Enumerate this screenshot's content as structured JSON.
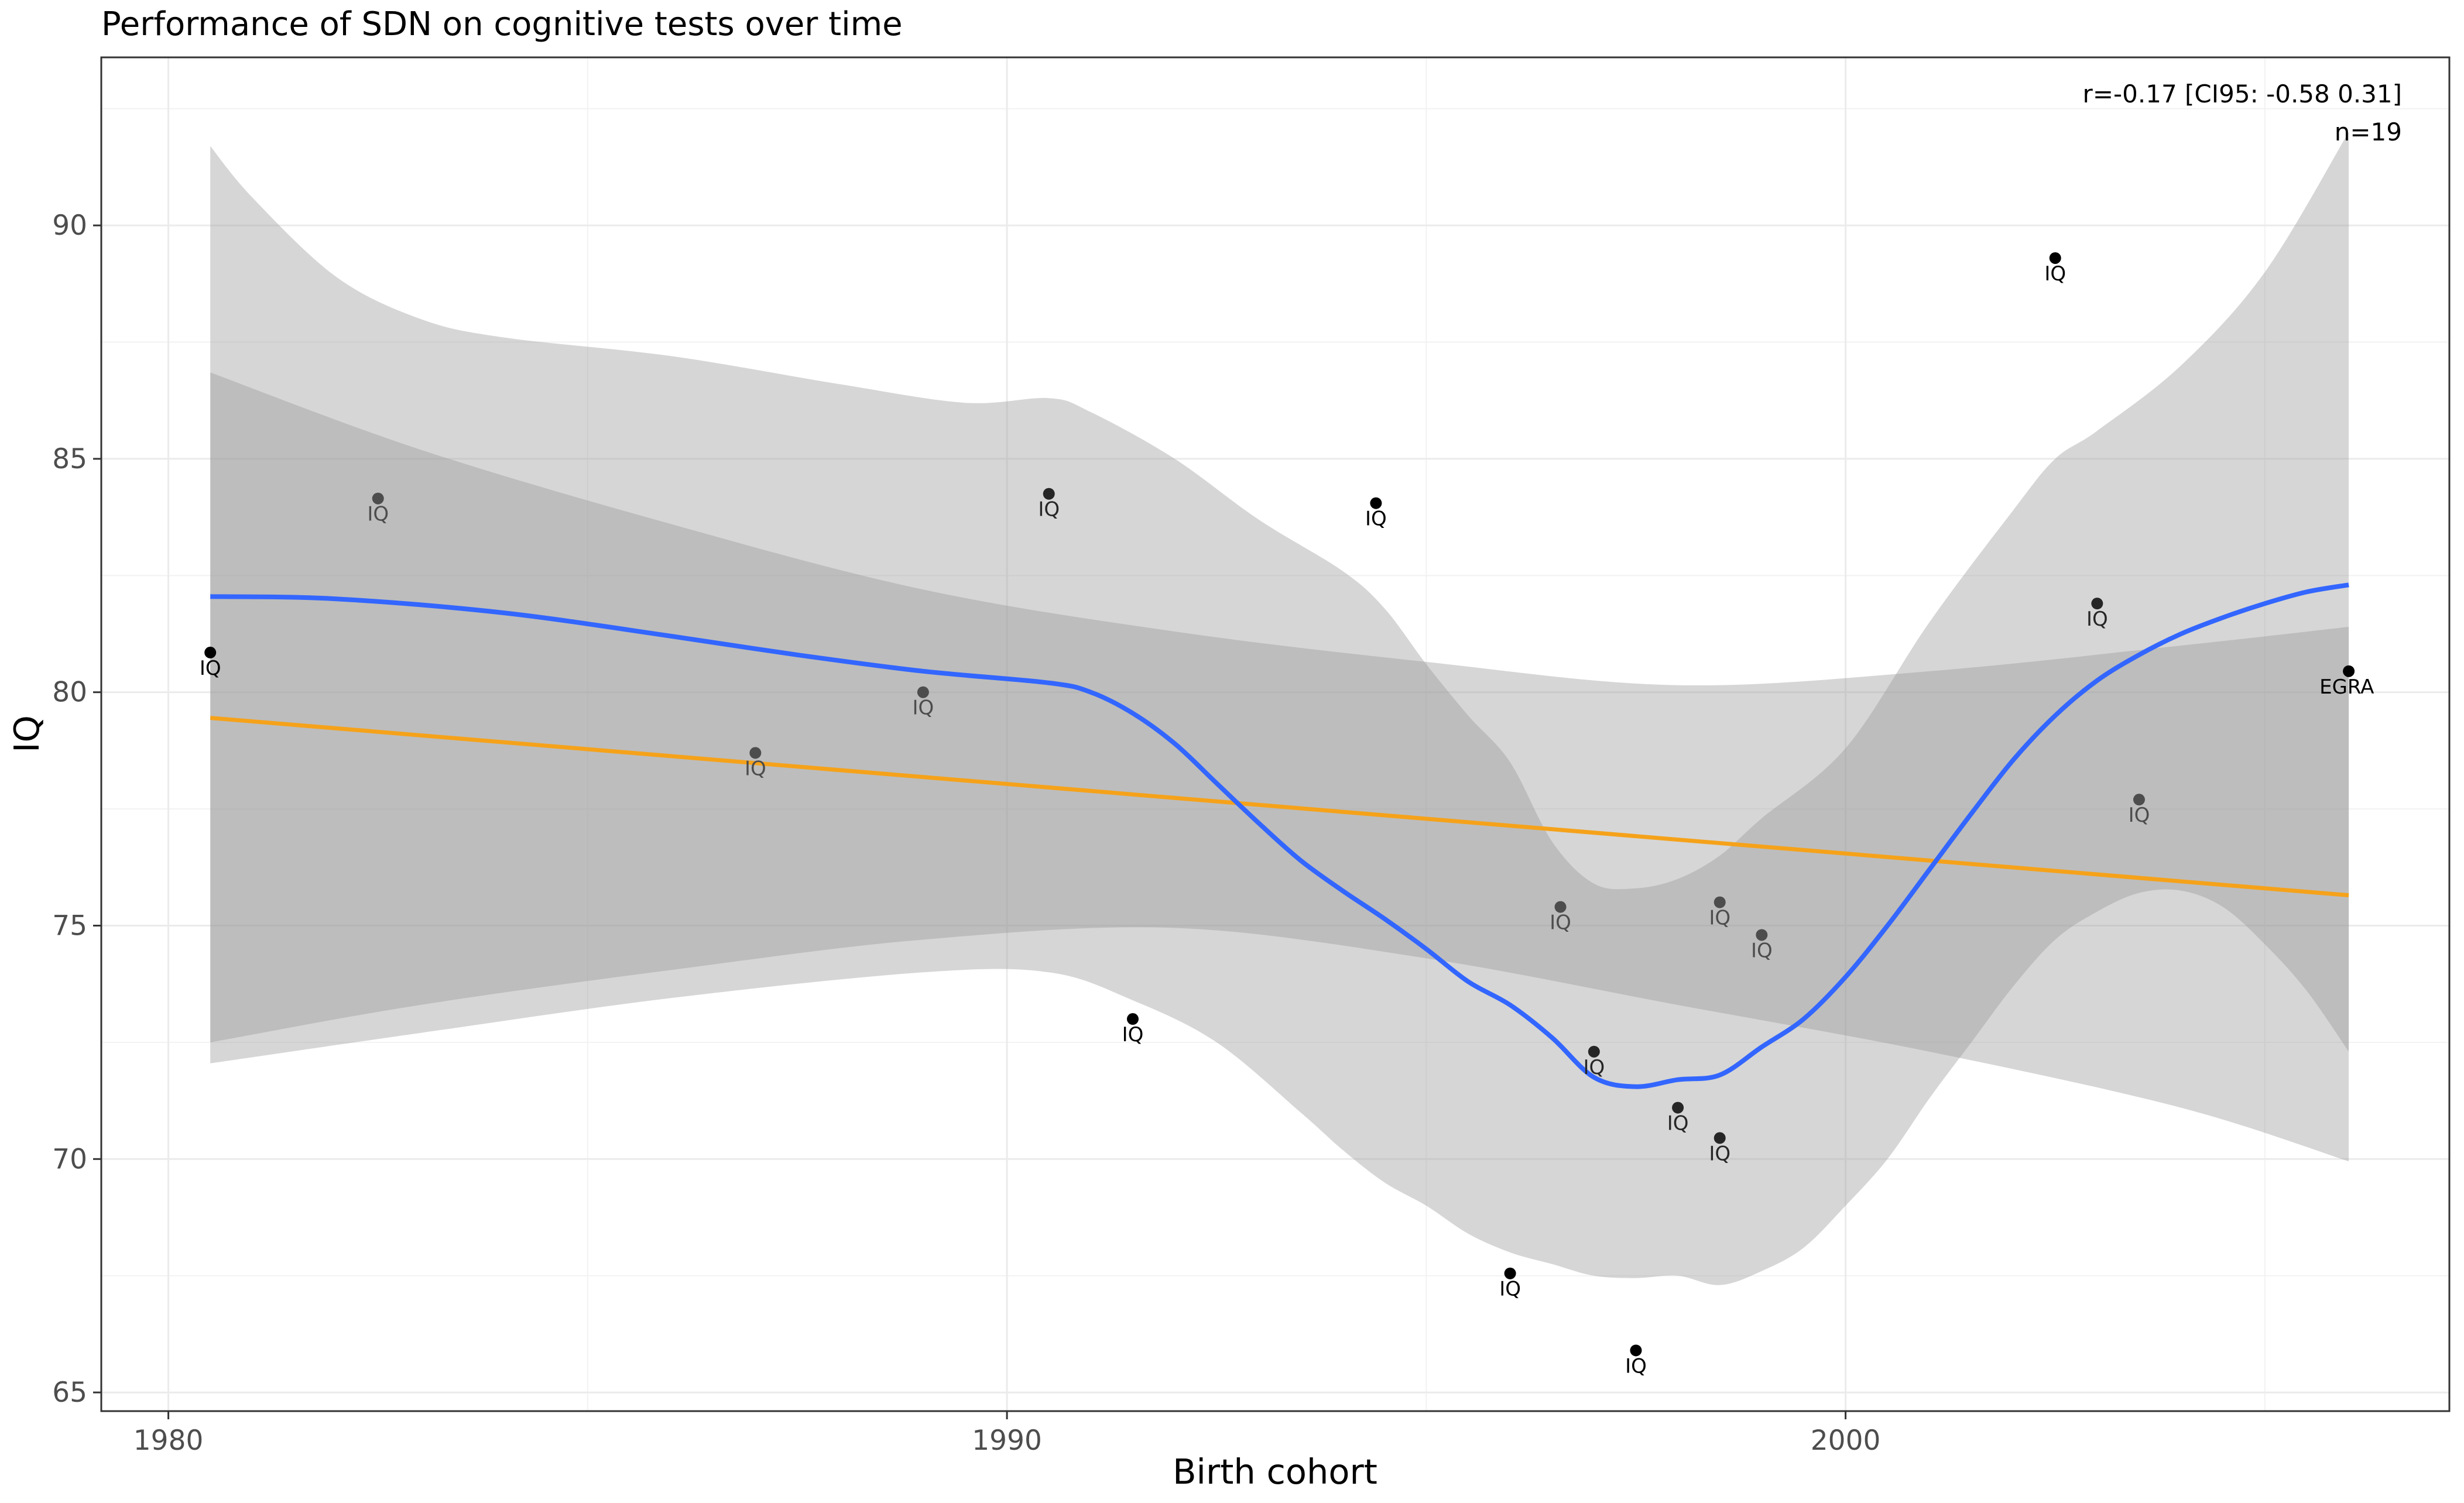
{
  "chart_data": {
    "type": "scatter",
    "title": "Performance of SDN on cognitive tests over time",
    "xlabel": "Birth cohort",
    "ylabel": "IQ",
    "xlim": [
      1979.2,
      2007.2
    ],
    "ylim": [
      64.6,
      93.6
    ],
    "x_ticks": [
      1980,
      1990,
      2000
    ],
    "y_ticks": [
      65,
      70,
      75,
      80,
      85,
      90
    ],
    "grid": true,
    "annotation": {
      "line1": "r=-0.17 [CI95: -0.58 0.31]",
      "line2": "n=19"
    },
    "points": [
      {
        "x": 1980.5,
        "y": 80.85,
        "label": "IQ",
        "shade": 0.0
      },
      {
        "x": 1982.5,
        "y": 84.15,
        "label": "IQ",
        "shade": 0.3
      },
      {
        "x": 1987.0,
        "y": 78.7,
        "label": "IQ",
        "shade": 0.3
      },
      {
        "x": 1989.0,
        "y": 80.0,
        "label": "IQ",
        "shade": 0.3
      },
      {
        "x": 1990.5,
        "y": 84.25,
        "label": "IQ",
        "shade": 0.15
      },
      {
        "x": 1991.5,
        "y": 73.0,
        "label": "IQ",
        "shade": 0.0
      },
      {
        "x": 1994.4,
        "y": 84.05,
        "label": "IQ",
        "shade": 0.0
      },
      {
        "x": 1996.0,
        "y": 67.55,
        "label": "IQ",
        "shade": 0.0
      },
      {
        "x": 1996.6,
        "y": 75.4,
        "label": "IQ",
        "shade": 0.3
      },
      {
        "x": 1997.0,
        "y": 72.3,
        "label": "IQ",
        "shade": 0.15
      },
      {
        "x": 1997.5,
        "y": 65.9,
        "label": "IQ",
        "shade": 0.0
      },
      {
        "x": 1998.0,
        "y": 71.1,
        "label": "IQ",
        "shade": 0.15
      },
      {
        "x": 1998.5,
        "y": 75.5,
        "label": "IQ",
        "shade": 0.3
      },
      {
        "x": 1998.5,
        "y": 70.45,
        "label": "IQ",
        "shade": 0.15
      },
      {
        "x": 1999.0,
        "y": 74.8,
        "label": "IQ",
        "shade": 0.3
      },
      {
        "x": 2002.5,
        "y": 89.3,
        "label": "IQ",
        "shade": 0.0
      },
      {
        "x": 2003.0,
        "y": 81.9,
        "label": "IQ",
        "shade": 0.15
      },
      {
        "x": 2003.5,
        "y": 77.7,
        "label": "IQ",
        "shade": 0.3
      },
      {
        "x": 2006.0,
        "y": 80.45,
        "label": "EGRA",
        "shade": 0.0
      }
    ],
    "linear_fit": {
      "color": "#f5a21a",
      "x": [
        1980.5,
        2006.0
      ],
      "y": [
        79.45,
        75.65
      ],
      "ci_lower": [
        [
          1980.5,
          72.5
        ],
        [
          1983.0,
          73.3
        ],
        [
          1986.0,
          74.05
        ],
        [
          1989.0,
          74.7
        ],
        [
          1992.0,
          74.95
        ],
        [
          1995.0,
          74.3
        ],
        [
          1998.0,
          73.3
        ],
        [
          2001.0,
          72.3
        ],
        [
          2004.0,
          71.1
        ],
        [
          2006.0,
          69.95
        ]
      ],
      "ci_upper": [
        [
          1980.5,
          86.85
        ],
        [
          1983.0,
          85.2
        ],
        [
          1986.0,
          83.6
        ],
        [
          1989.0,
          82.2
        ],
        [
          1992.0,
          81.3
        ],
        [
          1995.0,
          80.65
        ],
        [
          1998.0,
          80.15
        ],
        [
          2001.0,
          80.45
        ],
        [
          2004.0,
          81.0
        ],
        [
          2006.0,
          81.4
        ]
      ]
    },
    "smooth_fit": {
      "color": "#3366ff",
      "points": [
        [
          1980.5,
          82.05
        ],
        [
          1982.0,
          82.0
        ],
        [
          1984.0,
          81.7
        ],
        [
          1986.0,
          81.2
        ],
        [
          1987.5,
          80.8
        ],
        [
          1989.0,
          80.45
        ],
        [
          1990.5,
          80.2
        ],
        [
          1991.0,
          80.0
        ],
        [
          1991.5,
          79.55
        ],
        [
          1992.0,
          78.9
        ],
        [
          1992.5,
          78.05
        ],
        [
          1993.0,
          77.2
        ],
        [
          1993.5,
          76.4
        ],
        [
          1994.0,
          75.75
        ],
        [
          1994.5,
          75.15
        ],
        [
          1995.0,
          74.5
        ],
        [
          1995.5,
          73.8
        ],
        [
          1996.0,
          73.3
        ],
        [
          1996.5,
          72.6
        ],
        [
          1997.0,
          71.75
        ],
        [
          1997.5,
          71.55
        ],
        [
          1998.0,
          71.7
        ],
        [
          1998.5,
          71.8
        ],
        [
          1999.0,
          72.4
        ],
        [
          1999.5,
          73.0
        ],
        [
          2000.0,
          73.9
        ],
        [
          2000.5,
          75.0
        ],
        [
          2001.0,
          76.2
        ],
        [
          2001.5,
          77.4
        ],
        [
          2002.0,
          78.55
        ],
        [
          2002.5,
          79.5
        ],
        [
          2003.0,
          80.25
        ],
        [
          2003.5,
          80.8
        ],
        [
          2004.0,
          81.25
        ],
        [
          2004.5,
          81.6
        ],
        [
          2005.0,
          81.9
        ],
        [
          2005.5,
          82.15
        ],
        [
          2006.0,
          82.3
        ]
      ],
      "ci_lower": [
        [
          1980.5,
          72.05
        ],
        [
          1983.0,
          72.7
        ],
        [
          1986.0,
          73.45
        ],
        [
          1989.0,
          74.0
        ],
        [
          1990.5,
          74.0
        ],
        [
          1991.5,
          73.4
        ],
        [
          1992.5,
          72.5
        ],
        [
          1993.5,
          71.0
        ],
        [
          1994.0,
          70.2
        ],
        [
          1994.5,
          69.5
        ],
        [
          1995.0,
          69.0
        ],
        [
          1995.5,
          68.4
        ],
        [
          1996.0,
          68.0
        ],
        [
          1996.5,
          67.75
        ],
        [
          1997.0,
          67.5
        ],
        [
          1997.5,
          67.45
        ],
        [
          1998.0,
          67.5
        ],
        [
          1998.5,
          67.3
        ],
        [
          1999.0,
          67.6
        ],
        [
          1999.5,
          68.1
        ],
        [
          2000.0,
          69.0
        ],
        [
          2000.5,
          70.0
        ],
        [
          2001.0,
          71.3
        ],
        [
          2001.5,
          72.5
        ],
        [
          2002.0,
          73.7
        ],
        [
          2002.5,
          74.7
        ],
        [
          2003.0,
          75.3
        ],
        [
          2003.5,
          75.7
        ],
        [
          2004.0,
          75.75
        ],
        [
          2004.5,
          75.4
        ],
        [
          2005.0,
          74.6
        ],
        [
          2005.5,
          73.6
        ],
        [
          2006.0,
          72.3
        ]
      ],
      "ci_upper": [
        [
          1980.5,
          91.7
        ],
        [
          1981.0,
          90.6
        ],
        [
          1982.0,
          88.9
        ],
        [
          1983.0,
          88.0
        ],
        [
          1984.0,
          87.6
        ],
        [
          1986.0,
          87.2
        ],
        [
          1988.0,
          86.6
        ],
        [
          1989.5,
          86.2
        ],
        [
          1990.5,
          86.3
        ],
        [
          1991.0,
          86.0
        ],
        [
          1992.0,
          85.0
        ],
        [
          1993.0,
          83.7
        ],
        [
          1994.0,
          82.6
        ],
        [
          1994.5,
          81.8
        ],
        [
          1995.0,
          80.6
        ],
        [
          1995.5,
          79.5
        ],
        [
          1996.0,
          78.5
        ],
        [
          1996.5,
          76.8
        ],
        [
          1997.0,
          75.9
        ],
        [
          1997.5,
          75.8
        ],
        [
          1998.0,
          76.0
        ],
        [
          1998.5,
          76.5
        ],
        [
          1999.0,
          77.3
        ],
        [
          2000.0,
          78.8
        ],
        [
          2001.0,
          81.5
        ],
        [
          2002.0,
          83.9
        ],
        [
          2002.5,
          85.0
        ],
        [
          2003.0,
          85.6
        ],
        [
          2004.0,
          87.0
        ],
        [
          2005.0,
          89.0
        ],
        [
          2006.0,
          92.0
        ]
      ]
    }
  }
}
